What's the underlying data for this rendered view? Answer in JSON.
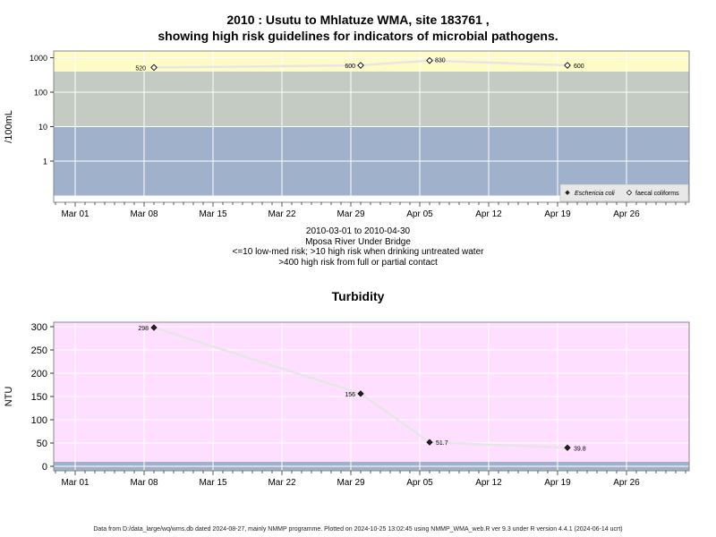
{
  "micro": {
    "title_line1": "2010 : Usutu to Mhlatuze WMA, site 183761 ,",
    "title_line2": "showing high risk guidelines for indicators of microbial pathogens.",
    "caption": [
      "2010-03-01 to 2010-04-30",
      "Mposa River Under Bridge",
      "<=10 low-med risk; >10 high risk when drinking untreated water",
      ">400 high risk from full or partial contact"
    ],
    "legend": {
      "ecoli": "Eschericia coli",
      "faecal": "faecal coliforms"
    }
  },
  "turbidity": {
    "title": "Turbidity"
  },
  "footer": "Data from D:/data_large/wq/wms.db dated 2024-08-27, mainly NMMP programme. Plotted on 2024-10-25 13:02:45 using NMMP_WMA_web.R ver 9.3 under R version 4.4.1 (2024-06-14 ucrt)",
  "chart_data": [
    {
      "type": "scatter",
      "title": "2010 : Usutu to Mhlatuze WMA, site 183761 , showing high risk guidelines for indicators of microbial pathogens.",
      "ylabel": "/100mL",
      "yscale": "log",
      "x_axis_dates": [
        "2010-03-01",
        "2010-03-08",
        "2010-03-15",
        "2010-03-22",
        "2010-03-29",
        "2010-04-05",
        "2010-04-12",
        "2010-04-19",
        "2010-04-26"
      ],
      "x_tick_labels": [
        "Mar 01",
        "Mar 08",
        "Mar 15",
        "Mar 22",
        "Mar 29",
        "Apr 05",
        "Apr 12",
        "Apr 19",
        "Apr 26"
      ],
      "y_ticks": [
        1,
        10,
        100,
        1000
      ],
      "y_tick_labels": [
        "1",
        "10",
        "100",
        "1000"
      ],
      "bands": [
        {
          "from": 0.1,
          "to": 10,
          "color": "#a0b1cb"
        },
        {
          "from": 10,
          "to": 400,
          "color": "#c3cbc3"
        },
        {
          "from": 400,
          "to": 1500,
          "color": "#fffbc6"
        }
      ],
      "series": [
        {
          "name": "faecal coliforms",
          "marker": "open-diamond",
          "points": [
            {
              "x": "2010-03-09",
              "y": 520
            },
            {
              "x": "2010-03-30",
              "y": 600
            },
            {
              "x": "2010-04-06",
              "y": 830
            },
            {
              "x": "2010-04-20",
              "y": 600
            }
          ]
        }
      ],
      "legend_placement": "bottom-right",
      "grid": true
    },
    {
      "type": "scatter",
      "title": "Turbidity",
      "ylabel": "NTU",
      "yscale": "linear",
      "ylim": [
        -10,
        310
      ],
      "y_ticks": [
        0,
        50,
        100,
        150,
        200,
        250,
        300
      ],
      "y_tick_labels": [
        "0",
        "50",
        "100",
        "150",
        "200",
        "250",
        "300"
      ],
      "x_axis_dates": [
        "2010-03-01",
        "2010-03-08",
        "2010-03-15",
        "2010-03-22",
        "2010-03-29",
        "2010-04-05",
        "2010-04-12",
        "2010-04-19",
        "2010-04-26"
      ],
      "x_tick_labels": [
        "Mar 01",
        "Mar 08",
        "Mar 15",
        "Mar 22",
        "Mar 29",
        "Apr 05",
        "Apr 12",
        "Apr 19",
        "Apr 26"
      ],
      "bands": [
        {
          "from": -10,
          "to": 10,
          "color": "#a0b1cb"
        },
        {
          "from": 10,
          "to": 310,
          "color": "#ffdfff"
        }
      ],
      "series": [
        {
          "marker": "filled-diamond",
          "points": [
            {
              "x": "2010-03-09",
              "y": 298,
              "label": "298"
            },
            {
              "x": "2010-03-30",
              "y": 156,
              "label": "156"
            },
            {
              "x": "2010-04-06",
              "y": 51.7,
              "label": "51.7"
            },
            {
              "x": "2010-04-20",
              "y": 39.8,
              "label": "39.8"
            }
          ]
        }
      ],
      "grid": true
    }
  ]
}
